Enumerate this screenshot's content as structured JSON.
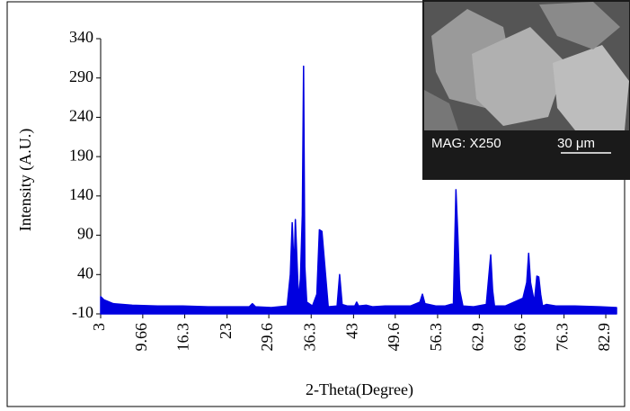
{
  "chart_data": {
    "type": "line",
    "y_label": "Intensity (A.U.)",
    "x_label": "2-Theta(Degree)",
    "x": [
      3,
      3.5,
      5,
      8,
      12,
      16,
      20,
      24,
      26.5,
      27,
      27.5,
      30,
      32.5,
      33.0,
      33.3,
      33.6,
      33.8,
      34.3,
      34.6,
      34.9,
      35.1,
      35.3,
      35.6,
      36.5,
      37.2,
      37.6,
      38,
      39,
      40.4,
      40.8,
      41.2,
      42,
      43.2,
      43.5,
      43.8,
      45,
      46,
      48,
      52,
      53.5,
      53.9,
      54.3,
      56,
      57.5,
      58.8,
      59.2,
      59.5,
      59.8,
      60.3,
      62,
      64,
      64.4,
      64.7,
      65.0,
      65.3,
      67,
      69.8,
      70.4,
      70.7,
      71.0,
      71.6,
      72.0,
      72.3,
      72.6,
      72.9,
      73.5,
      75,
      78,
      82,
      84.6
    ],
    "values": [
      12,
      8,
      3,
      1,
      0,
      0,
      -1,
      -1,
      -1,
      3,
      -1,
      -2,
      0,
      40,
      106,
      45,
      110,
      8,
      35,
      116,
      305,
      50,
      5,
      0,
      15,
      97,
      95,
      -1,
      0,
      40,
      2,
      0,
      0,
      5,
      0,
      1,
      -1,
      0,
      0,
      5,
      15,
      3,
      0,
      0,
      3,
      148,
      90,
      20,
      0,
      -1,
      2,
      38,
      65,
      20,
      0,
      0,
      10,
      30,
      67,
      30,
      5,
      38,
      37,
      15,
      0,
      2,
      0,
      0,
      -1,
      -2
    ],
    "color": "#0000e0",
    "xlim": [
      3,
      84.6
    ],
    "xticks": [
      3,
      9.66,
      16.3,
      23,
      29.6,
      36.3,
      43,
      49.6,
      56.3,
      62.9,
      69.6,
      76.3,
      82.9
    ],
    "ylim": [
      -10,
      340
    ],
    "yticks": [
      -10,
      40,
      90,
      140,
      190,
      240,
      290,
      340
    ],
    "inset": {
      "magnification": "MAG: X250",
      "scale": "30 μm"
    }
  }
}
